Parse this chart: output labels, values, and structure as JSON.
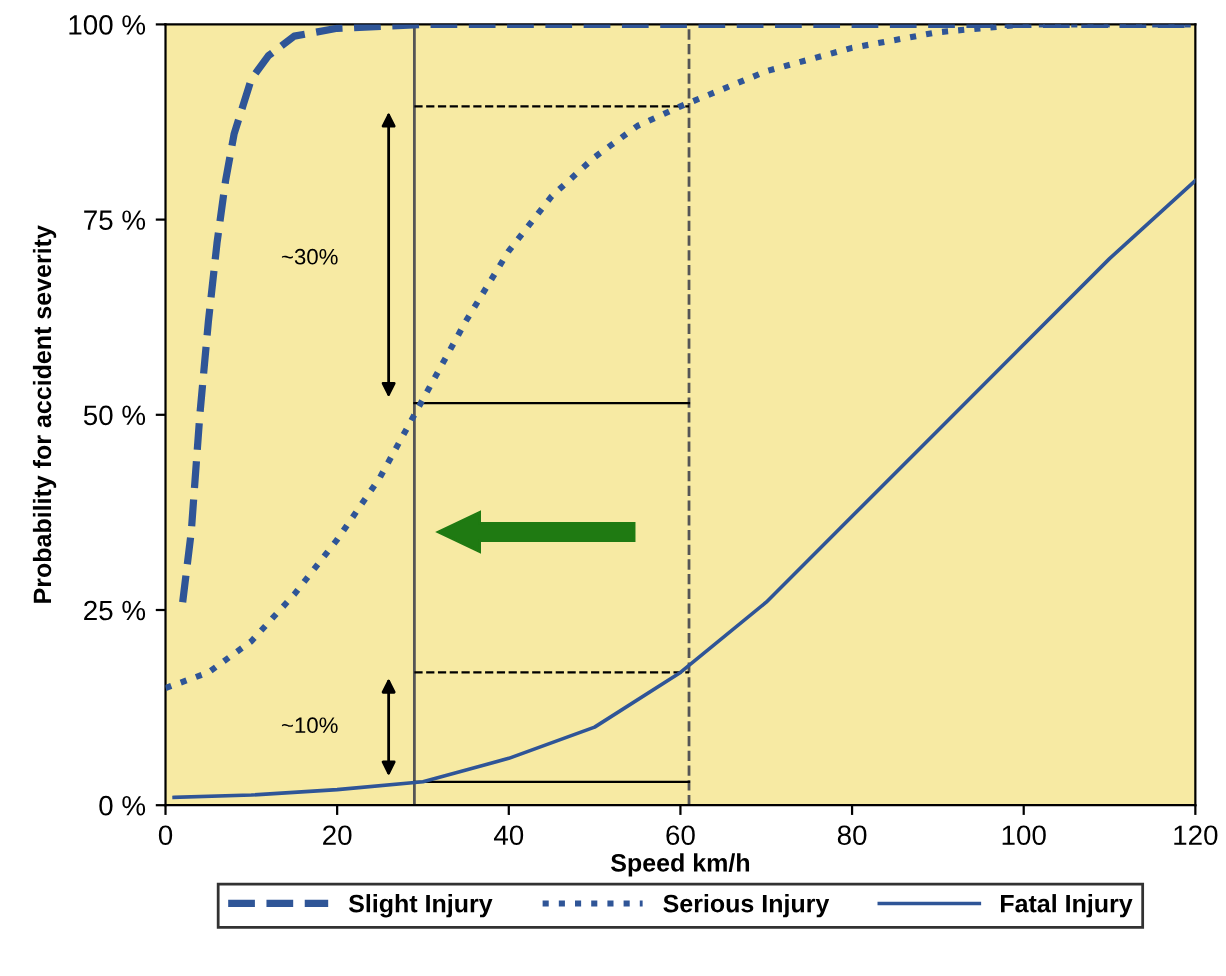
{
  "chart_data": {
    "type": "line",
    "xlabel": "Speed km/h",
    "ylabel": "Probability for accident severity",
    "xlim": [
      0,
      120
    ],
    "xticks": [
      0,
      20,
      40,
      60,
      80,
      100,
      120
    ],
    "ylim": [
      0,
      100
    ],
    "yticks": [
      {
        "value": 0,
        "label": "0 %"
      },
      {
        "value": 25,
        "label": "25 %"
      },
      {
        "value": 50,
        "label": "50 %"
      },
      {
        "value": 75,
        "label": "75 %"
      },
      {
        "value": 100,
        "label": "100 %"
      }
    ],
    "grid": false,
    "legend": "bottom",
    "marker": "none",
    "series": [
      {
        "name": "Slight Injury",
        "color": "#2f5597",
        "line_style": "dashed",
        "x": [
          2,
          3,
          4,
          5,
          6,
          7,
          8,
          10,
          12,
          15,
          20,
          30,
          60,
          90,
          120
        ],
        "values": [
          26,
          35,
          50,
          62,
          72,
          80,
          86,
          93,
          96,
          98.5,
          99.5,
          100,
          100,
          100,
          100
        ]
      },
      {
        "name": "Serious Injury",
        "color": "#2f5597",
        "line_style": "dotted",
        "x": [
          0,
          5,
          10,
          15,
          20,
          25,
          30,
          35,
          40,
          45,
          50,
          55,
          60,
          70,
          80,
          90,
          100,
          120
        ],
        "values": [
          15,
          17,
          21,
          27,
          34,
          42,
          52,
          62,
          71,
          78,
          83,
          87,
          89.5,
          94,
          97,
          99,
          100,
          100
        ]
      },
      {
        "name": "Fatal Injury",
        "color": "#2f5597",
        "line_style": "solid",
        "x": [
          1,
          10,
          20,
          30,
          40,
          50,
          60,
          70,
          80,
          90,
          100,
          110,
          120
        ],
        "values": [
          1,
          1.3,
          2,
          3,
          6,
          10,
          17,
          26,
          37,
          48,
          59,
          70,
          80
        ]
      },
      {
        "color": "#000000",
        "line_style": "dashed",
        "x": [
          29,
          61
        ],
        "values": [
          89.5,
          89.5
        ]
      },
      {
        "color": "#000000",
        "line_style": "solid",
        "x": [
          29,
          61
        ],
        "values": [
          51.5,
          51.5
        ]
      },
      {
        "color": "#000000",
        "line_style": "dashed",
        "x": [
          29,
          61
        ],
        "values": [
          17,
          17
        ]
      },
      {
        "color": "#000000",
        "line_style": "solid",
        "x": [
          29,
          61
        ],
        "values": [
          3,
          3
        ]
      }
    ],
    "ref_lines": [
      {
        "axis": "x",
        "value": 29,
        "color": "#555555",
        "line_style": "solid"
      },
      {
        "axis": "x",
        "value": 61,
        "color": "#555555",
        "line_style": "dashed"
      }
    ],
    "annotations": [
      "~30%",
      "~10%"
    ]
  }
}
